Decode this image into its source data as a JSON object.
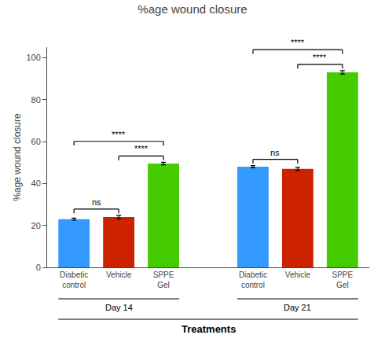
{
  "chart_data": {
    "type": "bar",
    "title": "%age wound closure",
    "ylabel": "%age wound closure",
    "xlabel": "Treatments",
    "categories": [
      "Diabetic control",
      "Vehicle",
      "SPPE Gel",
      "Diabetic control",
      "Vehicle",
      "SPPE Gel"
    ],
    "day_labels": [
      "Day 14",
      "Day 21"
    ],
    "values": [
      23,
      24,
      49.5,
      48,
      47,
      93
    ],
    "errors": [
      0.5,
      0.8,
      0.6,
      0.5,
      0.7,
      0.8
    ],
    "colors": [
      "#3399FF",
      "#CC2200",
      "#44CC00",
      "#3399FF",
      "#CC2200",
      "#44CC00"
    ],
    "ylim": [
      0,
      105
    ],
    "yticks": [
      0,
      20,
      40,
      60,
      80,
      100
    ],
    "grid": false,
    "annotations": [
      {
        "text": "ns",
        "bars": [
          0,
          1
        ]
      },
      {
        "text": "****",
        "bars": [
          1,
          2
        ]
      },
      {
        "text": "****",
        "bars": [
          0,
          2
        ]
      },
      {
        "text": "ns",
        "bars": [
          3,
          4
        ]
      },
      {
        "text": "****",
        "bars": [
          4,
          5
        ]
      },
      {
        "text": "****",
        "bars": [
          3,
          5
        ]
      }
    ]
  }
}
